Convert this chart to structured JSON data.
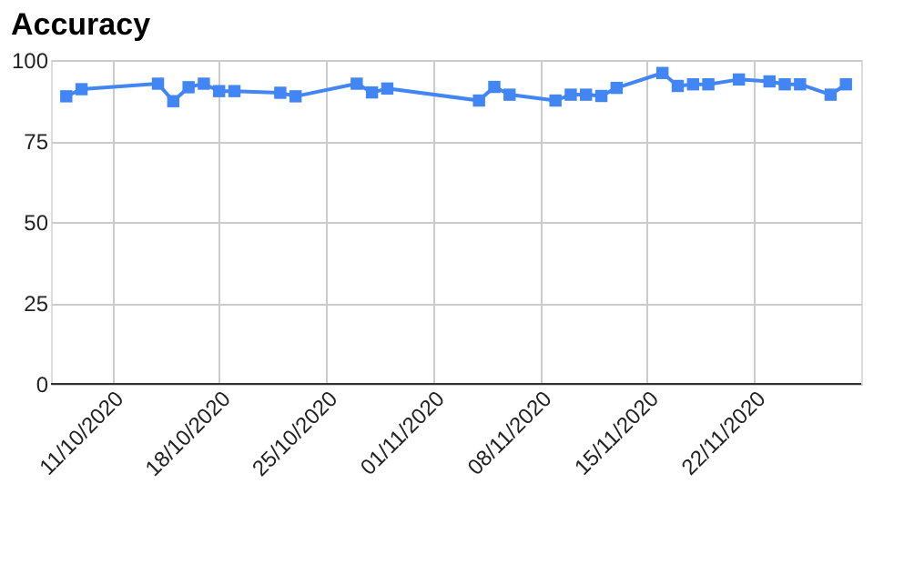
{
  "chart_data": {
    "type": "line",
    "title": "Accuracy",
    "x": [
      "2020-10-08",
      "2020-10-09",
      "2020-10-14",
      "2020-10-15",
      "2020-10-16",
      "2020-10-17",
      "2020-10-18",
      "2020-10-19",
      "2020-10-22",
      "2020-10-23",
      "2020-10-27",
      "2020-10-28",
      "2020-10-29",
      "2020-11-04",
      "2020-11-05",
      "2020-11-06",
      "2020-11-09",
      "2020-11-10",
      "2020-11-11",
      "2020-11-12",
      "2020-11-13",
      "2020-11-16",
      "2020-11-17",
      "2020-11-18",
      "2020-11-19",
      "2020-11-21",
      "2020-11-23",
      "2020-11-24",
      "2020-11-25",
      "2020-11-27",
      "2020-11-28"
    ],
    "series": [
      {
        "color": "#4285f4",
        "values": [
          88.8,
          91,
          92.7,
          87.3,
          91.6,
          92.7,
          90.4,
          90.4,
          89.9,
          88.8,
          92.7,
          90,
          91.2,
          87.5,
          91.7,
          89.3,
          87.5,
          89.3,
          89.3,
          88.9,
          91.4,
          96,
          92,
          92.5,
          92.5,
          94,
          93.4,
          92.5,
          92.5,
          89.3,
          92.5
        ]
      }
    ],
    "xlim": [
      "2020-10-07",
      "2020-11-29"
    ],
    "xticks": [
      {
        "value": "2020-10-11",
        "label": "11/10/2020"
      },
      {
        "value": "2020-10-18",
        "label": "18/10/2020"
      },
      {
        "value": "2020-10-25",
        "label": "25/10/2020"
      },
      {
        "value": "2020-11-01",
        "label": "01/11/2020"
      },
      {
        "value": "2020-11-08",
        "label": "08/11/2020"
      },
      {
        "value": "2020-11-15",
        "label": "15/11/2020"
      },
      {
        "value": "2020-11-22",
        "label": "22/11/2020"
      }
    ],
    "ylim": [
      0,
      100
    ],
    "yticks": [
      0,
      25,
      50,
      75,
      100
    ],
    "grid": true,
    "marker": "square",
    "line_style": "solid",
    "legend": false
  }
}
